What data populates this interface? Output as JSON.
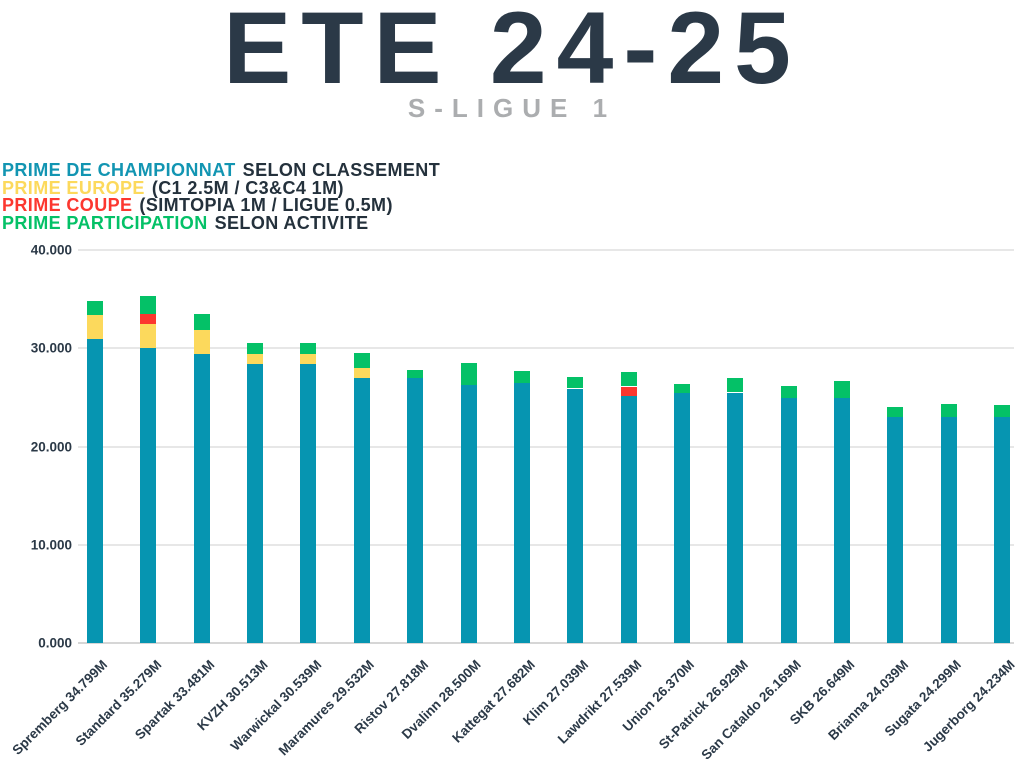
{
  "title": "ETE 24-25",
  "subtitle": "S-LIGUE 1",
  "legend": [
    {
      "label": "PRIME DE CHAMPIONNAT",
      "suffix": "SELON CLASSEMENT",
      "color": "#1295b2"
    },
    {
      "label": "PRIME EUROPE",
      "suffix": "(C1 2.5M / C3&C4 1M)",
      "color": "#fcd95c"
    },
    {
      "label": "PRIME COUPE",
      "suffix": "(SIMTOPIA 1M / LIGUE 0.5M)",
      "color": "#fc372f"
    },
    {
      "label": "PRIME PARTICIPATION",
      "suffix": "SELON ACTIVITE",
      "color": "#04c167"
    }
  ],
  "chart_data": {
    "type": "bar",
    "stacked": true,
    "title": "ETE 24-25",
    "subtitle": "S-LIGUE 1",
    "ylim": [
      0,
      40
    ],
    "yticks": [
      "0.000",
      "10.000",
      "20.000",
      "30.000",
      "40.000"
    ],
    "grid": true,
    "legend_position": "top-left",
    "categories": [
      "Spremberg 34.799M",
      "Standard 35.279M",
      "Spartak 33.481M",
      "KVZH 30.513M",
      "Warwickal 30.539M",
      "Maramures 29.532M",
      "Ristov 27.818M",
      "Dvalinn 28.500M",
      "Kattegat 27.682M",
      "Klim 27.039M",
      "Lawdrikt 27.539M",
      "Union 26.370M",
      "St-Patrick 26.929M",
      "San Cataldo 26.169M",
      "SKB 26.649M",
      "Brianna 24.039M",
      "Sugata 24.299M",
      "Jugerborg 24.234M"
    ],
    "totals_m": [
      34.799,
      35.279,
      33.481,
      30.513,
      30.539,
      29.532,
      27.818,
      28.5,
      27.682,
      27.039,
      27.539,
      26.37,
      26.929,
      26.169,
      26.649,
      24.039,
      24.299,
      24.234
    ],
    "series": [
      {
        "key": "championnat",
        "name": "PRIME DE CHAMPIONNAT",
        "color": "#0695b1",
        "values": [
          30.9,
          30.0,
          29.4,
          28.4,
          28.4,
          27.0,
          27.0,
          26.3,
          26.5,
          25.9,
          25.1,
          25.4,
          25.5,
          24.9,
          24.9,
          23.0,
          23.0,
          23.0
        ]
      },
      {
        "key": "europe",
        "name": "PRIME EUROPE",
        "color": "#fcd95c",
        "values": [
          2.5,
          2.5,
          2.5,
          1.0,
          1.0,
          1.0,
          0,
          0,
          0,
          0,
          0,
          0,
          0,
          0,
          0,
          0,
          0,
          0
        ]
      },
      {
        "key": "coupe",
        "name": "PRIME COUPE",
        "color": "#fc372f",
        "values": [
          0,
          1.0,
          0,
          0,
          0,
          0,
          0,
          0,
          0,
          0,
          1.0,
          0,
          0,
          0,
          0,
          0,
          0,
          0
        ]
      },
      {
        "key": "participation",
        "name": "PRIME PARTICIPATION",
        "color": "#04c167",
        "values": [
          1.399,
          1.779,
          1.581,
          1.113,
          1.139,
          1.532,
          0.818,
          2.2,
          1.182,
          1.139,
          1.439,
          0.97,
          1.429,
          1.269,
          1.749,
          1.039,
          1.299,
          1.234
        ]
      }
    ]
  }
}
